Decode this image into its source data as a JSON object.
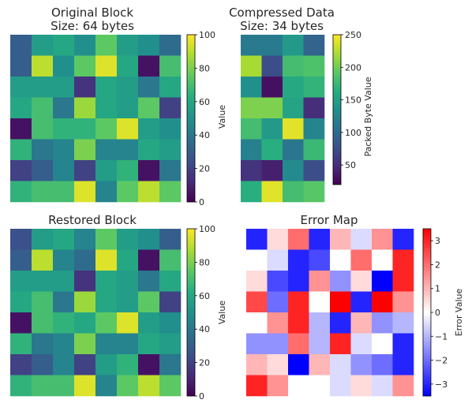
{
  "chart_data": [
    {
      "type": "heatmap",
      "title": "Original Block",
      "subtitle": "Size: 64 bytes",
      "colormap": "viridis",
      "vmin": 0,
      "vmax": 100,
      "colorbar_label": "Value",
      "colorbar_ticks": [
        0,
        20,
        40,
        60,
        80,
        100
      ],
      "values": [
        [
          30,
          55,
          60,
          50,
          75,
          55,
          50,
          35
        ],
        [
          30,
          90,
          50,
          75,
          95,
          60,
          5,
          70
        ],
        [
          55,
          55,
          55,
          15,
          60,
          55,
          40,
          60
        ],
        [
          60,
          70,
          40,
          85,
          60,
          55,
          75,
          20
        ],
        [
          5,
          70,
          65,
          65,
          75,
          95,
          55,
          50
        ],
        [
          65,
          40,
          45,
          80,
          45,
          45,
          60,
          55
        ],
        [
          20,
          30,
          45,
          20,
          55,
          65,
          5,
          40
        ],
        [
          65,
          70,
          70,
          95,
          45,
          75,
          90,
          75
        ]
      ]
    },
    {
      "type": "heatmap",
      "title": "Compressed Data",
      "subtitle": "Size: 34 bytes",
      "colormap": "viridis",
      "vmin": 20,
      "vmax": 250,
      "colorbar_label": "Packed Byte Value",
      "colorbar_ticks": [
        50,
        100,
        150,
        200,
        250
      ],
      "values": [
        [
          115,
          115,
          145,
          95
        ],
        [
          220,
          75,
          180,
          185
        ],
        [
          135,
          30,
          160,
          170
        ],
        [
          205,
          205,
          155,
          50
        ],
        [
          180,
          145,
          240,
          125
        ],
        [
          120,
          165,
          110,
          175
        ],
        [
          55,
          40,
          130,
          75
        ],
        [
          165,
          240,
          180,
          190
        ]
      ]
    },
    {
      "type": "heatmap",
      "title": "Restored Block",
      "colormap": "viridis",
      "vmin": 0,
      "vmax": 100,
      "colorbar_label": "Value",
      "colorbar_ticks": [
        0,
        20,
        40,
        60,
        80,
        100
      ],
      "values": [
        [
          25,
          55,
          60,
          45,
          75,
          55,
          50,
          30
        ],
        [
          30,
          90,
          45,
          35,
          95,
          60,
          5,
          70
        ],
        [
          55,
          55,
          55,
          15,
          60,
          55,
          40,
          60
        ],
        [
          60,
          70,
          40,
          85,
          60,
          55,
          75,
          20
        ],
        [
          5,
          70,
          65,
          60,
          75,
          95,
          55,
          50
        ],
        [
          65,
          40,
          45,
          80,
          45,
          45,
          60,
          55
        ],
        [
          20,
          30,
          45,
          20,
          55,
          65,
          5,
          40
        ],
        [
          65,
          70,
          70,
          95,
          45,
          75,
          90,
          75
        ]
      ]
    },
    {
      "type": "heatmap",
      "title": "Error Map",
      "colormap": "bwr",
      "vmin": -3.5,
      "vmax": 3.5,
      "colorbar_label": "Error Value",
      "colorbar_ticks": [
        -3,
        -2,
        -1,
        0,
        1,
        2,
        3
      ],
      "values": [
        [
          -3,
          0.5,
          2,
          -3,
          1,
          -0.5,
          1.5,
          -3
        ],
        [
          0,
          -0.5,
          -3,
          -2.5,
          0,
          2,
          0,
          3
        ],
        [
          0.5,
          -2.5,
          -3,
          1.5,
          -1.5,
          0.5,
          -3.5,
          3
        ],
        [
          2.5,
          -2,
          3,
          0,
          3.5,
          -3,
          3.5,
          1.5
        ],
        [
          0,
          1.5,
          3,
          -1,
          -3,
          1,
          -1.5,
          -1
        ],
        [
          -1.5,
          -1.5,
          2,
          -1,
          3,
          -0.5,
          0,
          -3
        ],
        [
          1,
          0.5,
          -3.5,
          1,
          -0.5,
          -1.5,
          -2,
          -3
        ],
        [
          3,
          1.5,
          0,
          0,
          -0.5,
          0.5,
          -0.5,
          1.5
        ]
      ]
    }
  ]
}
